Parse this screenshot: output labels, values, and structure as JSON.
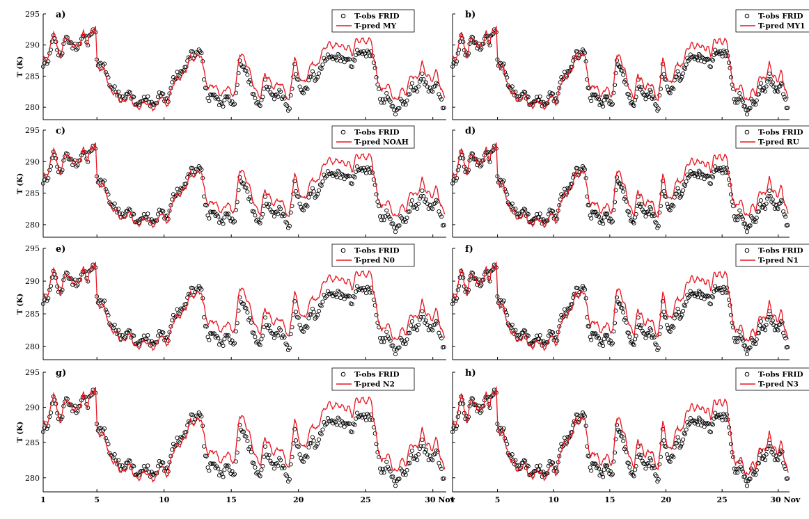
{
  "figure": {
    "ylabel": "T (K)",
    "x_axis_ticks": [
      "1",
      "5",
      "10",
      "15",
      "20",
      "25",
      "30"
    ],
    "x_axis_unit": "Nov",
    "colors": {
      "observed": "#000000",
      "predicted": "#e8141e"
    }
  },
  "chart_data": [
    {
      "type": "line",
      "panel": "a)",
      "xlim": [
        1,
        31
      ],
      "ylim": [
        278,
        295
      ],
      "yticks": [
        280,
        285,
        290,
        295
      ],
      "series": [
        {
          "name": "T-obs FRID",
          "style": "markers"
        },
        {
          "name": "T-pred MY",
          "style": "line"
        }
      ],
      "pred_offset": [
        0.6,
        -0.6,
        0.6,
        1.3
      ]
    },
    {
      "type": "line",
      "panel": "b)",
      "xlim": [
        1,
        31
      ],
      "ylim": [
        278,
        295
      ],
      "yticks": [
        280,
        285,
        290,
        295
      ],
      "series": [
        {
          "name": "T-obs FRID",
          "style": "markers"
        },
        {
          "name": "T-pred MY1",
          "style": "line"
        }
      ],
      "pred_offset": [
        0.6,
        -0.4,
        0.5,
        1.2
      ]
    },
    {
      "type": "line",
      "panel": "c)",
      "xlim": [
        1,
        31
      ],
      "ylim": [
        278,
        295
      ],
      "yticks": [
        280,
        285,
        290,
        295
      ],
      "series": [
        {
          "name": "T-obs FRID",
          "style": "markers"
        },
        {
          "name": "T-pred NOAH",
          "style": "line"
        }
      ],
      "pred_offset": [
        0.6,
        -0.5,
        0.7,
        1.4
      ]
    },
    {
      "type": "line",
      "panel": "d)",
      "xlim": [
        1,
        31
      ],
      "ylim": [
        278,
        295
      ],
      "yticks": [
        280,
        285,
        290,
        295
      ],
      "series": [
        {
          "name": "T-obs FRID",
          "style": "markers"
        },
        {
          "name": "T-pred RU",
          "style": "line"
        }
      ],
      "pred_offset": [
        0.6,
        -0.5,
        0.6,
        1.5
      ]
    },
    {
      "type": "line",
      "panel": "e)",
      "xlim": [
        1,
        31
      ],
      "ylim": [
        278,
        295
      ],
      "yticks": [
        280,
        285,
        290,
        295
      ],
      "series": [
        {
          "name": "T-obs FRID",
          "style": "markers"
        },
        {
          "name": "T-pred N0",
          "style": "line"
        }
      ],
      "pred_offset": [
        0.5,
        -0.6,
        1.0,
        1.1
      ]
    },
    {
      "type": "line",
      "panel": "f)",
      "xlim": [
        1,
        31
      ],
      "ylim": [
        278,
        295
      ],
      "yticks": [
        280,
        285,
        290,
        295
      ],
      "series": [
        {
          "name": "T-obs FRID",
          "style": "markers"
        },
        {
          "name": "T-pred N1",
          "style": "line"
        }
      ],
      "pred_offset": [
        0.5,
        -0.6,
        0.9,
        0.9
      ]
    },
    {
      "type": "line",
      "panel": "g)",
      "xlim": [
        1,
        31
      ],
      "ylim": [
        278,
        295
      ],
      "yticks": [
        280,
        285,
        290,
        295
      ],
      "series": [
        {
          "name": "T-obs FRID",
          "style": "markers"
        },
        {
          "name": "T-pred N2",
          "style": "line"
        }
      ],
      "pred_offset": [
        0.5,
        -0.6,
        0.9,
        1.0
      ]
    },
    {
      "type": "line",
      "panel": "h)",
      "xlim": [
        1,
        31
      ],
      "ylim": [
        278,
        295
      ],
      "yticks": [
        280,
        285,
        290,
        295
      ],
      "series": [
        {
          "name": "T-obs FRID",
          "style": "markers"
        },
        {
          "name": "T-pred N3",
          "style": "line"
        }
      ],
      "pred_offset": [
        0.5,
        -0.4,
        0.6,
        0.5
      ]
    }
  ]
}
